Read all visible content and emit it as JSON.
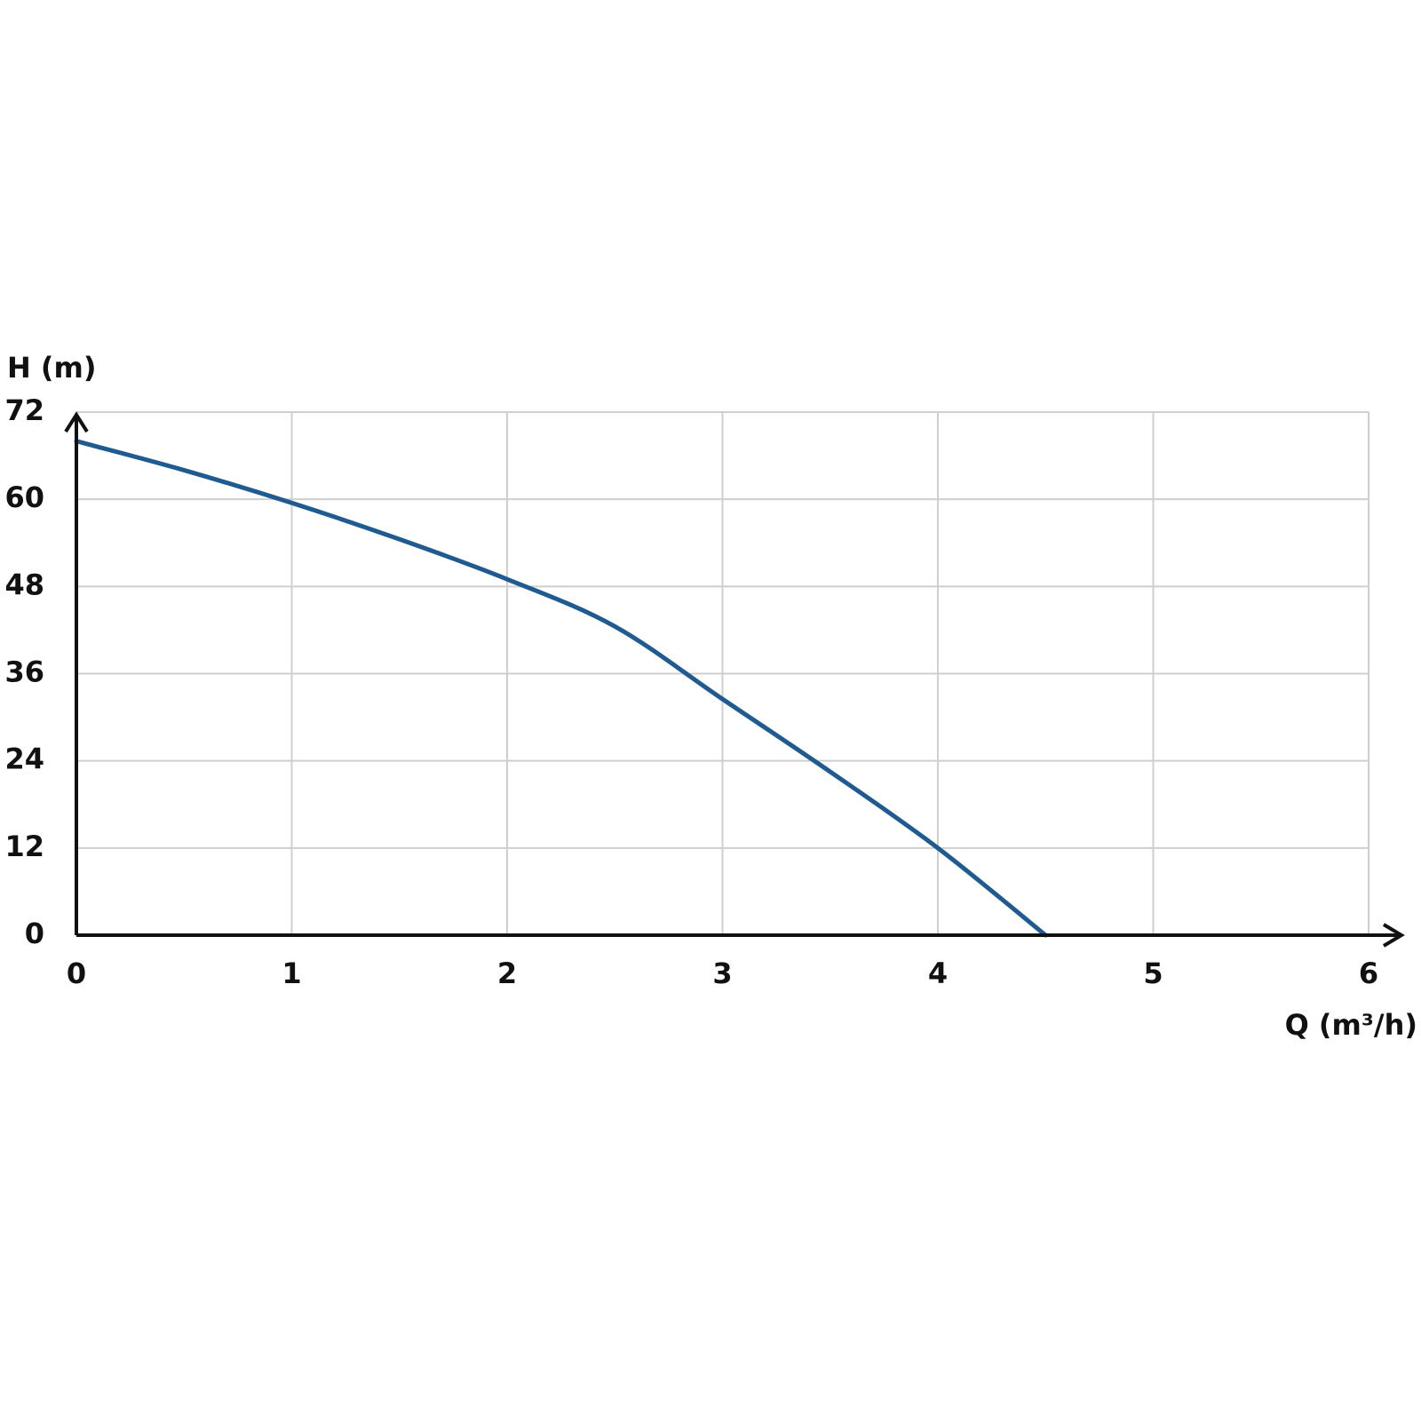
{
  "chart_data": {
    "type": "line",
    "y_label": "H (m)",
    "x_label": "Q (m³/h)",
    "x": [
      0,
      0.5,
      1,
      1.5,
      2,
      2.5,
      3,
      3.5,
      4,
      4.5
    ],
    "series": [
      {
        "color": "#1f5a91",
        "values": [
          68,
          64,
          59.5,
          54.5,
          49,
          42.5,
          32.5,
          22.5,
          12,
          0
        ]
      }
    ],
    "xlim": [
      0,
      6
    ],
    "xticks": [
      0,
      1,
      2,
      3,
      4,
      5,
      6
    ],
    "ylim": [
      0,
      72
    ],
    "yticks": [
      0,
      12,
      24,
      36,
      48,
      60,
      72
    ],
    "grid": true
  }
}
